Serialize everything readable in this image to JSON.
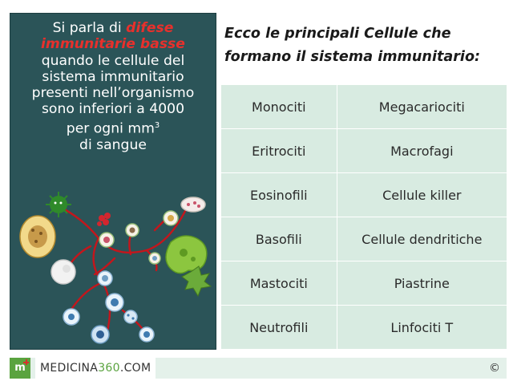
{
  "infobox": {
    "line1_prefix": "Si parla di ",
    "highlight_1": "difese",
    "highlight_2": "immunitarie basse",
    "line3": "quando le cellule del",
    "line4": "sistema immunitario",
    "line5": "presenti nell’organismo",
    "line6": "sono inferiori a 4000",
    "line7_prefix": "per ogni mm",
    "line7_sup": "3",
    "line8": "di sangue"
  },
  "heading": {
    "line1": "Ecco le principali Cellule che",
    "line2": "formano il sistema immunitario:"
  },
  "table": {
    "rows": [
      [
        "Monociti",
        "Megacariociti"
      ],
      [
        "Eritrociti",
        "Macrofagi"
      ],
      [
        "Eosinofili",
        "Cellule killer"
      ],
      [
        "Basofili",
        "Cellule dendritiche"
      ],
      [
        "Mastociti",
        "Piastrine"
      ],
      [
        "Neutrofili",
        "Linfociti T"
      ]
    ]
  },
  "footer": {
    "logo_letter": "m",
    "brand_prefix": "MEDICINA",
    "brand_number": "360",
    "brand_suffix": ".COM",
    "copyright": "©"
  },
  "colors": {
    "panel": "#2b5458",
    "highlight": "#e8302c",
    "table_bg": "#d8ebe1",
    "brand_green": "#5aa33f"
  }
}
